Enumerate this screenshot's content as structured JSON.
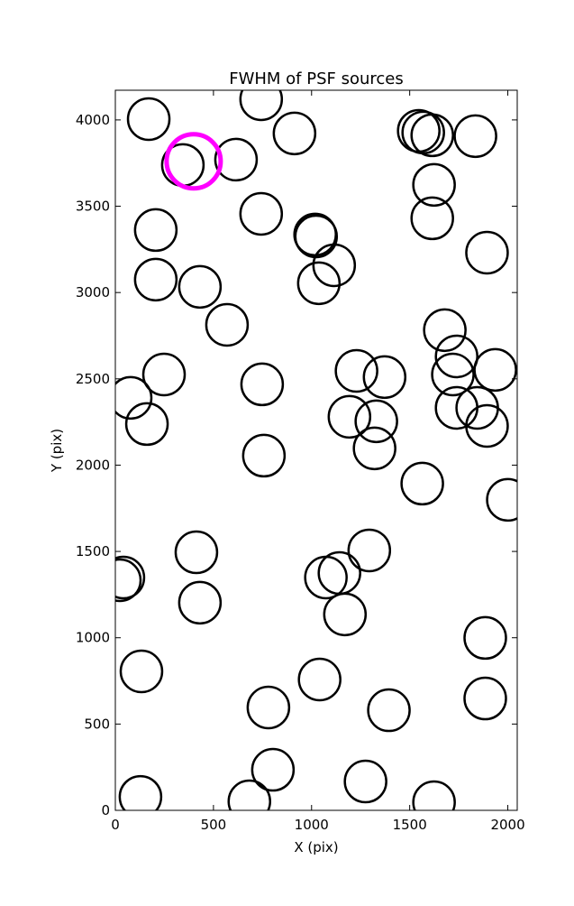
{
  "chart_data": {
    "type": "scatter",
    "title": "FWHM of PSF sources",
    "x_label": "X (pix)",
    "y_label": "Y (pix)",
    "xlim": [
      0,
      2048
    ],
    "ylim": [
      0,
      4172
    ],
    "xticks": [
      0,
      500,
      1000,
      1500,
      2000
    ],
    "yticks": [
      0,
      500,
      1000,
      1500,
      2000,
      2500,
      3000,
      3500,
      4000
    ],
    "series": [
      {
        "color": "#000000",
        "x": [
          170,
          743,
          913,
          344,
          615,
          1546,
          1569,
          1615,
          1835,
          1624,
          1615,
          206,
          743,
          1018,
          1023,
          1894,
          1115,
          206,
          431,
          1037,
          569,
          1679,
          1739,
          248,
          1229,
          1372,
          1936,
          1720,
          748,
          78,
          161,
          1193,
          1330,
          1739,
          1844,
          1894,
          1321,
          757,
          1564,
          2000,
          413,
          1294,
          41,
          23,
          431,
          1073,
          1142,
          1170,
          1885,
          133,
          1041,
          780,
          1394,
          1885,
          803,
          1275,
          128,
          683,
          1624
        ],
        "y": [
          4005,
          4120,
          3922,
          3739,
          3770,
          3937,
          3927,
          3911,
          3906,
          3624,
          3430,
          3362,
          3456,
          3336,
          3325,
          3231,
          3158,
          3075,
          3033,
          3054,
          2813,
          2782,
          2630,
          2525,
          2546,
          2510,
          2552,
          2525,
          2468,
          2390,
          2238,
          2280,
          2254,
          2332,
          2332,
          2227,
          2097,
          2055,
          1893,
          1799,
          1495,
          1506,
          1349,
          1333,
          1203,
          1349,
          1375,
          1135,
          999,
          805,
          758,
          596,
          580,
          648,
          235,
          167,
          78,
          52,
          47
        ]
      },
      {
        "color": "#ff00ff",
        "x": [
          399
        ],
        "y": [
          3760
        ]
      }
    ]
  }
}
